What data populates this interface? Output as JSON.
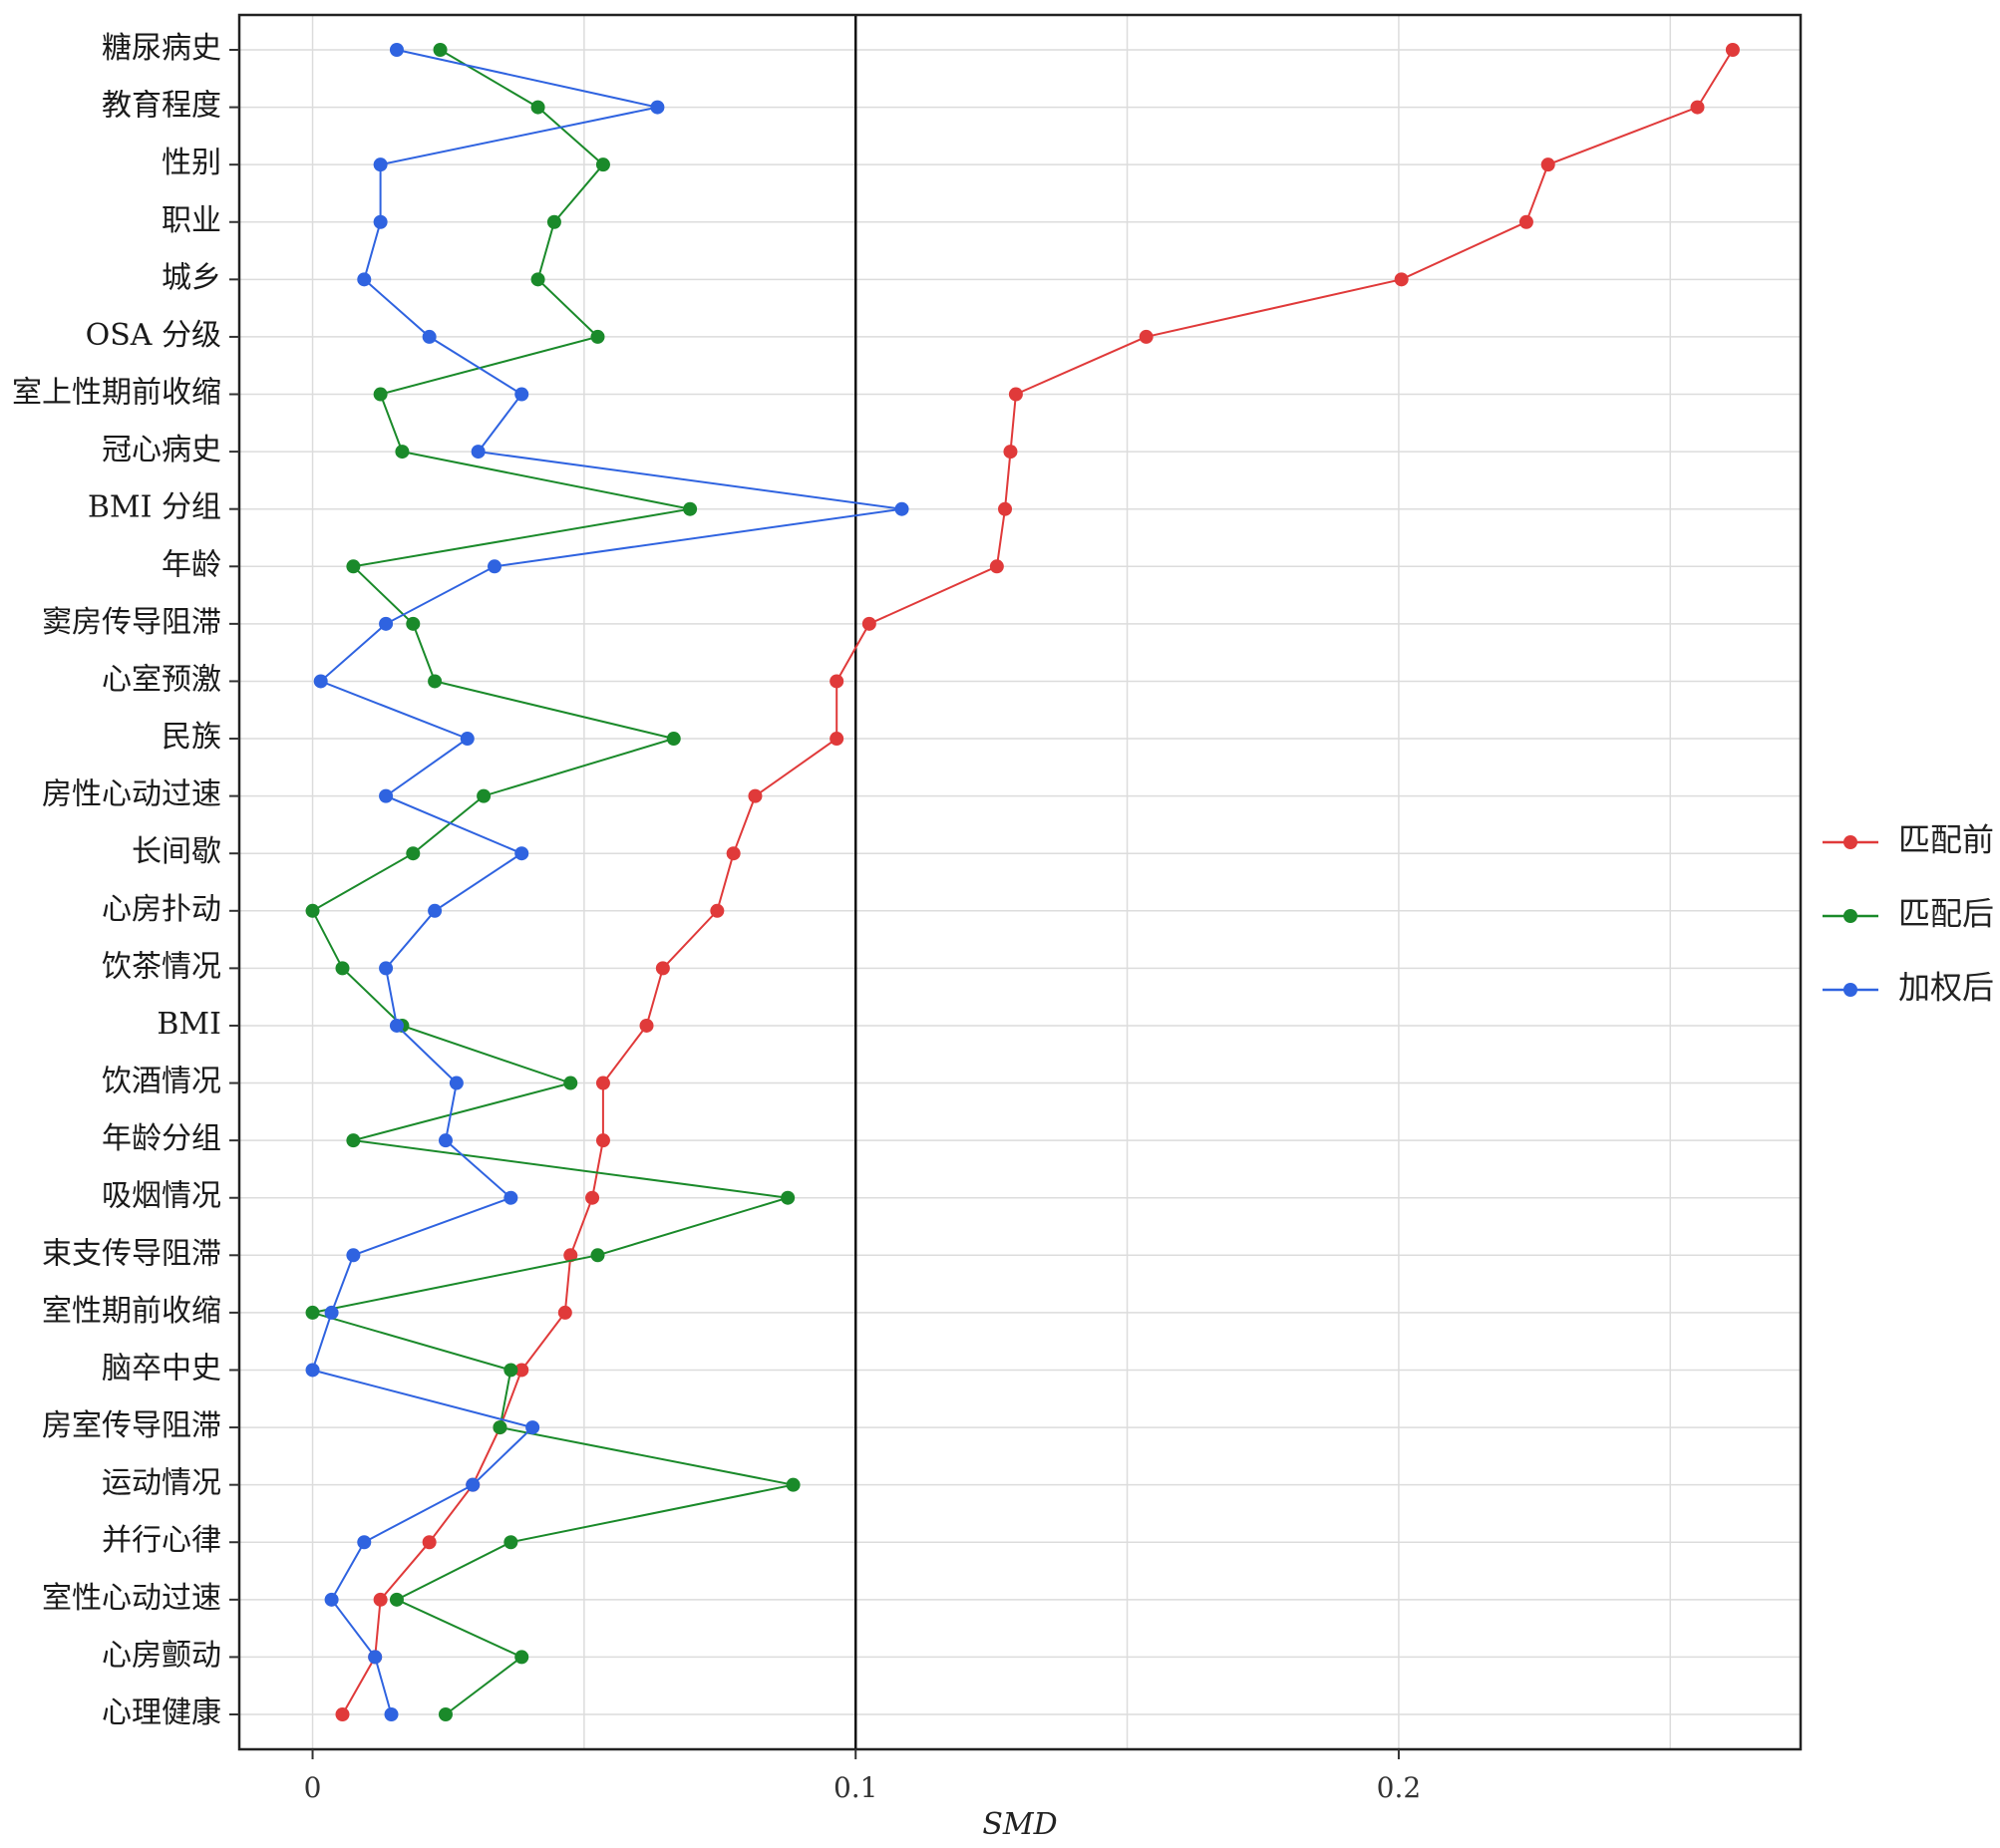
{
  "chart_data": {
    "type": "line",
    "xlabel": "SMD",
    "ylabel": "",
    "xlim": [
      -0.0135,
      0.274
    ],
    "xticks": [
      0,
      0.1,
      0.2
    ],
    "xtick_labels": [
      "0",
      "0.1",
      "0.2"
    ],
    "reference_line": 0.1,
    "grid": true,
    "legend_position": "right",
    "categories": [
      "糖尿病史",
      "教育程度",
      "性别",
      "职业",
      "城乡",
      "OSA 分级",
      "室上性期前收缩",
      "冠心病史",
      "BMI 分组",
      "年龄",
      "窦房传导阻滞",
      "心室预激",
      "民族",
      "房性心动过速",
      "长间歇",
      "心房扑动",
      "饮茶情况",
      "BMI",
      "饮酒情况",
      "年龄分组",
      "吸烟情况",
      "束支传导阻滞",
      "室性期前收缩",
      "脑卒中史",
      "房室传导阻滞",
      "运动情况",
      "并行心律",
      "室性心动过速",
      "心房颤动",
      "心理健康"
    ],
    "series": [
      {
        "name": "匹配前",
        "color": "#e03a3a",
        "values": [
          0.2615,
          0.255,
          0.2275,
          0.2235,
          0.2005,
          0.1535,
          0.1295,
          0.1285,
          0.1275,
          0.126,
          0.1025,
          0.0965,
          0.0965,
          0.0815,
          0.0775,
          0.0745,
          0.0645,
          0.0615,
          0.0535,
          0.0535,
          0.0515,
          0.0475,
          0.0465,
          0.0385,
          0.0345,
          0.0295,
          0.0215,
          0.0125,
          0.0115,
          0.0055
        ]
      },
      {
        "name": "匹配后",
        "color": "#1a8a2a",
        "values": [
          0.0235,
          0.0415,
          0.0535,
          0.0445,
          0.0415,
          0.0525,
          0.0125,
          0.0165,
          0.0695,
          0.0075,
          0.0185,
          0.0225,
          0.0665,
          0.0315,
          0.0185,
          0.0,
          0.0055,
          0.0165,
          0.0475,
          0.0075,
          0.0875,
          0.0525,
          0.0,
          0.0365,
          0.0345,
          0.0885,
          0.0365,
          0.0155,
          0.0385,
          0.0245
        ]
      },
      {
        "name": "加权后",
        "color": "#2f63e0",
        "values": [
          0.0155,
          0.0635,
          0.0125,
          0.0125,
          0.0095,
          0.0215,
          0.0385,
          0.0305,
          0.1085,
          0.0335,
          0.0135,
          0.0015,
          0.0285,
          0.0135,
          0.0385,
          0.0225,
          0.0135,
          0.0155,
          0.0265,
          0.0245,
          0.0365,
          0.0075,
          0.0035,
          0.0,
          0.0405,
          0.0295,
          0.0095,
          0.0035,
          0.0115,
          0.0145
        ]
      }
    ]
  }
}
